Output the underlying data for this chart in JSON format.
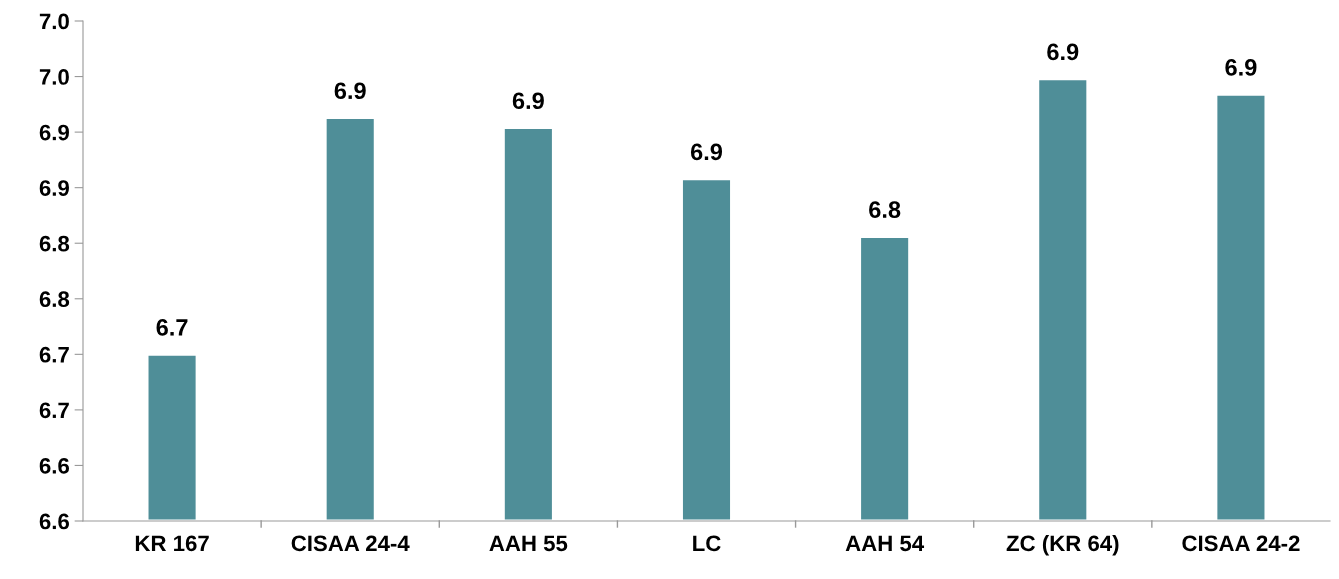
{
  "chart_data": {
    "type": "bar",
    "categories": [
      "KR 167",
      "CISAA 24-4",
      "AAH 55",
      "LC",
      "AAH 54",
      "ZC (KR 64)",
      "CISAA 24-2"
    ],
    "values": [
      6.7,
      6.913,
      6.904,
      6.858,
      6.806,
      6.948,
      6.934
    ],
    "value_labels": [
      "6.7",
      "6.9",
      "6.9",
      "6.9",
      "6.8",
      "6.9",
      "6.9"
    ],
    "color": "#4f8e98",
    "ylim": [
      6.55,
      7.0
    ],
    "yticks": [
      {
        "value": 6.55,
        "label": "6.6"
      },
      {
        "value": 6.6,
        "label": "6.6"
      },
      {
        "value": 6.65,
        "label": "6.7"
      },
      {
        "value": 6.7,
        "label": "6.7"
      },
      {
        "value": 6.75,
        "label": "6.8"
      },
      {
        "value": 6.8,
        "label": "6.8"
      },
      {
        "value": 6.85,
        "label": "6.9"
      },
      {
        "value": 6.9,
        "label": "6.9"
      },
      {
        "value": 6.95,
        "label": "7.0"
      },
      {
        "value": 7.0,
        "label": "7.0"
      }
    ],
    "grid": false,
    "legend": false
  }
}
